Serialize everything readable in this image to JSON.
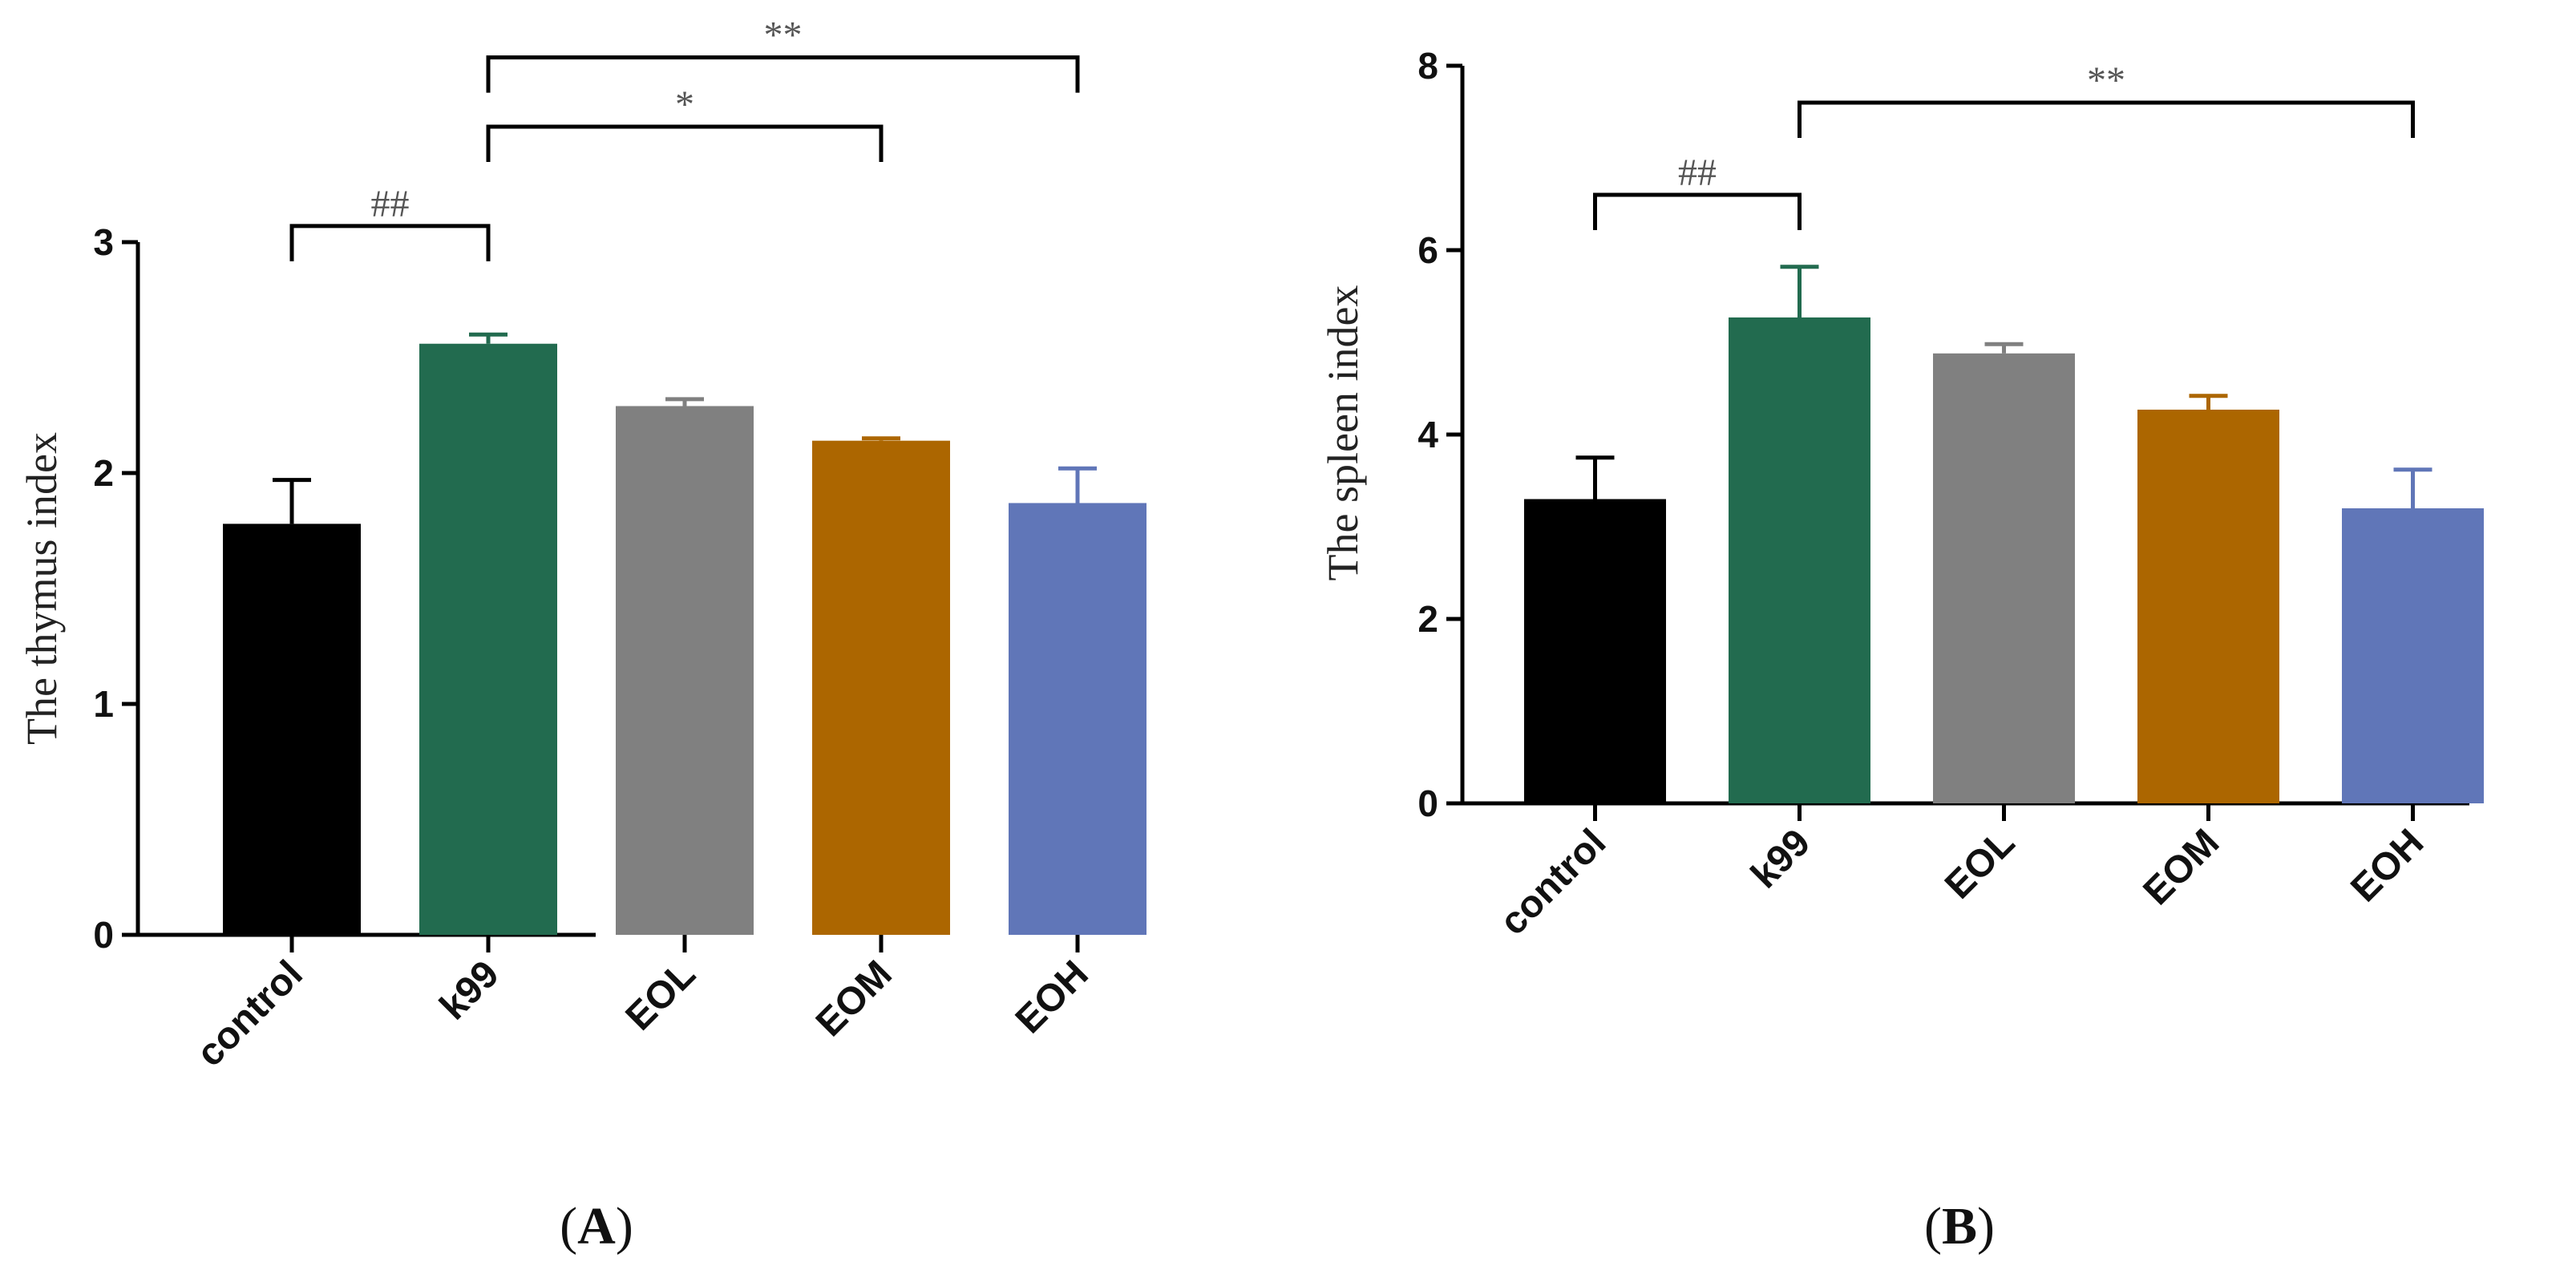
{
  "chart_data": [
    {
      "type": "bar",
      "panel": "A",
      "panel_label_open": "(",
      "panel_label_close": ")",
      "ylabel": "The thymus index",
      "categories": [
        "control",
        "k99",
        "EOL",
        "EOM",
        "EOH"
      ],
      "values": [
        1.78,
        2.56,
        2.29,
        2.14,
        1.87
      ],
      "errors": [
        0.19,
        0.04,
        0.03,
        0.01,
        0.15
      ],
      "colors": [
        "#000000",
        "#226b4f",
        "#808080",
        "#ac6600",
        "#6076b8"
      ],
      "ylim": [
        0,
        3
      ],
      "yticks": [
        0,
        1,
        2,
        3
      ],
      "significance": [
        {
          "from": 0,
          "to": 1,
          "label": "##",
          "level": 3.07
        },
        {
          "from": 1,
          "to": 3,
          "label": "*",
          "level": 3.5
        },
        {
          "from": 1,
          "to": 4,
          "label": "**",
          "level": 3.8
        }
      ]
    },
    {
      "type": "bar",
      "panel": "B",
      "panel_label_open": "(",
      "panel_label_close": ")",
      "ylabel": "The spleen index",
      "categories": [
        "control",
        "k99",
        "EOL",
        "EOM",
        "EOH"
      ],
      "values": [
        3.3,
        5.27,
        4.88,
        4.27,
        3.2
      ],
      "errors": [
        0.45,
        0.55,
        0.1,
        0.15,
        0.42
      ],
      "colors": [
        "#000000",
        "#226b4f",
        "#808080",
        "#ac6600",
        "#6076b8"
      ],
      "ylim": [
        0,
        8
      ],
      "yticks": [
        0,
        2,
        4,
        6,
        8
      ],
      "significance": [
        {
          "from": 0,
          "to": 1,
          "label": "##",
          "level": 6.6
        },
        {
          "from": 1,
          "to": 4,
          "label": "**",
          "level": 7.6
        }
      ]
    }
  ]
}
